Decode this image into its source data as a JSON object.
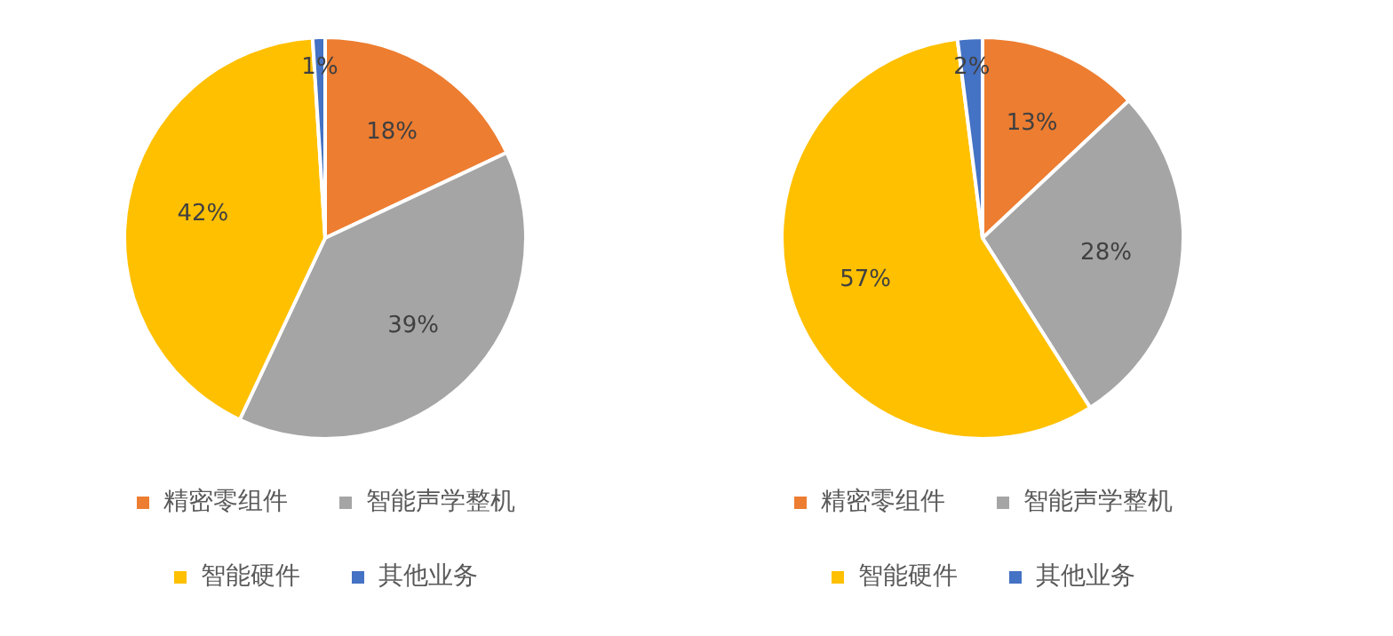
{
  "chart_data": [
    {
      "type": "pie",
      "categories": [
        "精密零组件",
        "智能声学整机",
        "智能硬件",
        "其他业务"
      ],
      "values": [
        18,
        39,
        42,
        1
      ],
      "value_labels": [
        "18%",
        "39%",
        "42%",
        "1%"
      ],
      "colors": [
        "#ed7d31",
        "#a5a5a5",
        "#ffc000",
        "#4472c4"
      ],
      "legend": "bottom"
    },
    {
      "type": "pie",
      "categories": [
        "精密零组件",
        "智能声学整机",
        "智能硬件",
        "其他业务"
      ],
      "values": [
        13,
        28,
        57,
        2
      ],
      "value_labels": [
        "13%",
        "28%",
        "57%",
        "2%"
      ],
      "colors": [
        "#ed7d31",
        "#a5a5a5",
        "#ffc000",
        "#4472c4"
      ],
      "legend": "bottom"
    }
  ]
}
